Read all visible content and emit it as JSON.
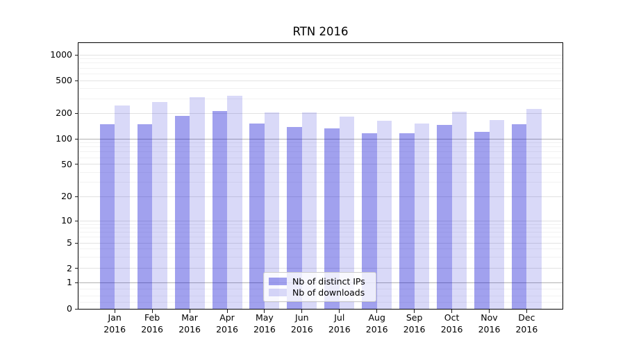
{
  "window": {
    "background": "#ffffff"
  },
  "chart_data": {
    "type": "bar",
    "title": "RTN 2016",
    "categories": [
      "Jan",
      "Feb",
      "Mar",
      "Apr",
      "May",
      "Jun",
      "Jul",
      "Aug",
      "Sep",
      "Oct",
      "Nov",
      "Dec"
    ],
    "category_year": "2016",
    "series": [
      {
        "name": "Nb of distinct IPs",
        "base_color": "#0000d2",
        "alpha": 0.37,
        "values": [
          150,
          148,
          185,
          215,
          152,
          139,
          134,
          117,
          116,
          146,
          121,
          148
        ]
      },
      {
        "name": "Nb of downloads",
        "base_color": "#0000d2",
        "alpha": 0.15,
        "values": [
          250,
          277,
          317,
          327,
          206,
          206,
          184,
          165,
          152,
          208,
          168,
          226
        ]
      }
    ],
    "xlabel": "",
    "ylabel": "",
    "y_axis": {
      "scale": "symlog",
      "tick_values": [
        0,
        1,
        2,
        5,
        10,
        20,
        50,
        100,
        200,
        500,
        1000
      ],
      "range": [
        0,
        1400
      ]
    },
    "grid": "on",
    "legend_position": "lower-center"
  }
}
